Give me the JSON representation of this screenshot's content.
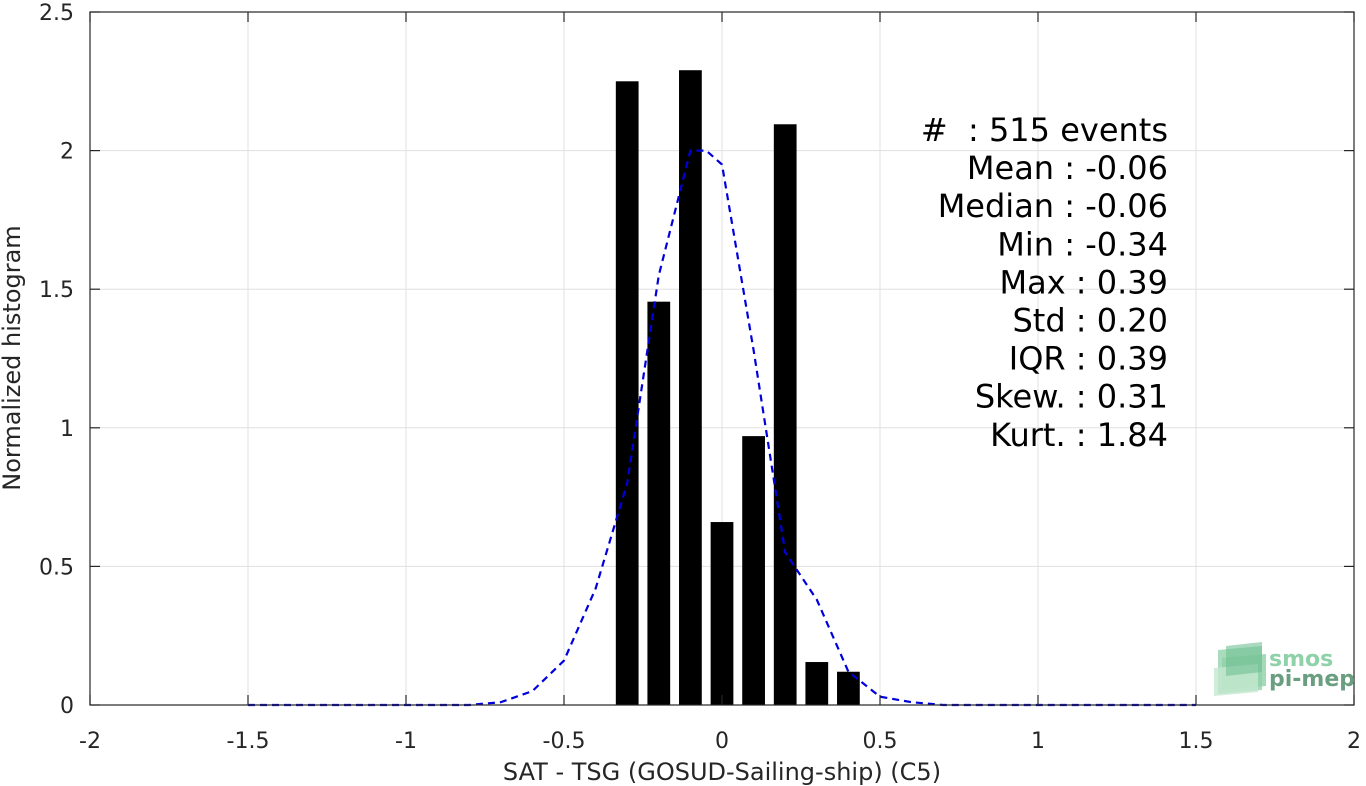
{
  "chart_data": {
    "type": "bar",
    "xlabel": "SAT - TSG (GOSUD-Sailing-ship) (C5)",
    "ylabel": "Normalized histogram",
    "xlim": [
      -2,
      2
    ],
    "ylim": [
      0,
      2.5
    ],
    "xticks": [
      -2,
      -1.5,
      -1,
      -0.5,
      0,
      0.5,
      1,
      1.5,
      2
    ],
    "xtick_labels": [
      "-2",
      "-1.5",
      "-1",
      "-0.5",
      "0",
      "0.5",
      "1",
      "1.5",
      "2"
    ],
    "yticks": [
      0,
      0.5,
      1,
      1.5,
      2,
      2.5
    ],
    "ytick_labels": [
      "0",
      "0.5",
      "1",
      "1.5",
      "2",
      "2.5"
    ],
    "grid": true,
    "bar_color": "#000000",
    "bar_width": 0.072,
    "bars": {
      "x": [
        -0.3,
        -0.2,
        -0.1,
        0.0,
        0.1,
        0.2,
        0.3,
        0.4
      ],
      "values": [
        2.25,
        1.455,
        2.29,
        0.66,
        0.97,
        2.095,
        0.155,
        0.12
      ]
    },
    "fit_curve": {
      "style": "dashed",
      "color": "#0000dd",
      "x": [
        -1.5,
        -1.4,
        -1.3,
        -1.2,
        -1.1,
        -1.0,
        -0.9,
        -0.8,
        -0.7,
        -0.6,
        -0.5,
        -0.4,
        -0.3,
        -0.2,
        -0.1,
        -0.05,
        0.0,
        0.1,
        0.2,
        0.3,
        0.4,
        0.5,
        0.6,
        0.7,
        0.8,
        0.9,
        1.0,
        1.1,
        1.2,
        1.3,
        1.4,
        1.5
      ],
      "y": [
        0.0,
        0.0,
        0.0,
        0.0,
        0.0,
        0.0,
        0.0,
        0.0,
        0.01,
        0.05,
        0.16,
        0.42,
        0.8,
        1.55,
        2.0,
        2.0,
        1.95,
        1.28,
        0.55,
        0.38,
        0.12,
        0.03,
        0.01,
        0.0,
        0.0,
        0.0,
        0.0,
        0.0,
        0.0,
        0.0,
        0.0,
        0.0
      ]
    },
    "annotations": [
      "#  : 515 events",
      "Mean : -0.06",
      "Median : -0.06",
      "Min : -0.34",
      "Max : 0.39",
      "Std : 0.20",
      "IQR : 0.39",
      "Skew. : 0.31",
      "Kurt. : 1.84"
    ]
  },
  "logo": {
    "line1": "smos",
    "line2": "pi-mep",
    "color_light": "#8fd1a8",
    "color_dark": "#5a9a78"
  }
}
